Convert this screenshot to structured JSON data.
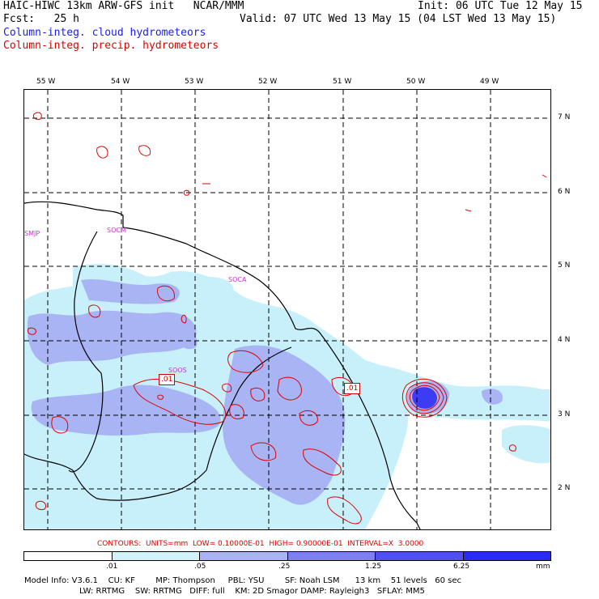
{
  "header": {
    "line1_left": "HAIC-HIWC 13km ARW-GFS init   NCAR/MMM",
    "line1_right": "Init: 06 UTC Tue 12 May 15",
    "line2_left": "Fcst:   25 h",
    "line2_right": "Valid: 07 UTC Wed 13 May 15 (04 LST Wed 13 May 15)",
    "legend_blue": "Column-integ. cloud hydrometeors",
    "legend_red": "Column-integ. precip. hydrometeors"
  },
  "map": {
    "lon_labels": [
      "55 W",
      "54 W",
      "53 W",
      "52 W",
      "51 W",
      "50 W",
      "49 W"
    ],
    "lat_labels": [
      "7 N",
      "6 N",
      "5 N",
      "4 N",
      "3 N",
      "2 N"
    ],
    "region_labels": [
      "SMJP",
      "SOCM",
      "SOCA",
      "SOOS"
    ],
    "contour_boxes": [
      ".01",
      ".01"
    ],
    "colors": {
      "shade1": "#c8f0fa",
      "shade2": "#a9b4f5",
      "shade3": "#7f7ff0",
      "shade4": "#3c3cf5",
      "contour": "#e00000",
      "coast": "#000000",
      "region_label": "#cc33cc"
    }
  },
  "contours_line": "CONTOURS:  UNITS=mm  LOW= 0.10000E-01  HIGH= 0.90000E-01  INTERVAL=X  3.0000",
  "colorbar": {
    "levels": [
      ".01",
      ".05",
      ".25",
      "1.25",
      "6.25"
    ],
    "unit": "mm",
    "colors": [
      "#ffffff",
      "#d2f2fa",
      "#a9b4f5",
      "#7f7ff0",
      "#5050f0",
      "#2a2af5"
    ]
  },
  "footer": {
    "line1": "Model Info: V3.6.1    CU: KF        MP: Thompson     PBL: YSU        SF: Noah LSM      13 km    51 levels   60 sec",
    "line2": "LW: RRTMG    SW: RRTMG   DIFF: full    KM: 2D Smagor DAMP: Rayleigh3   SFLAY: MM5"
  }
}
